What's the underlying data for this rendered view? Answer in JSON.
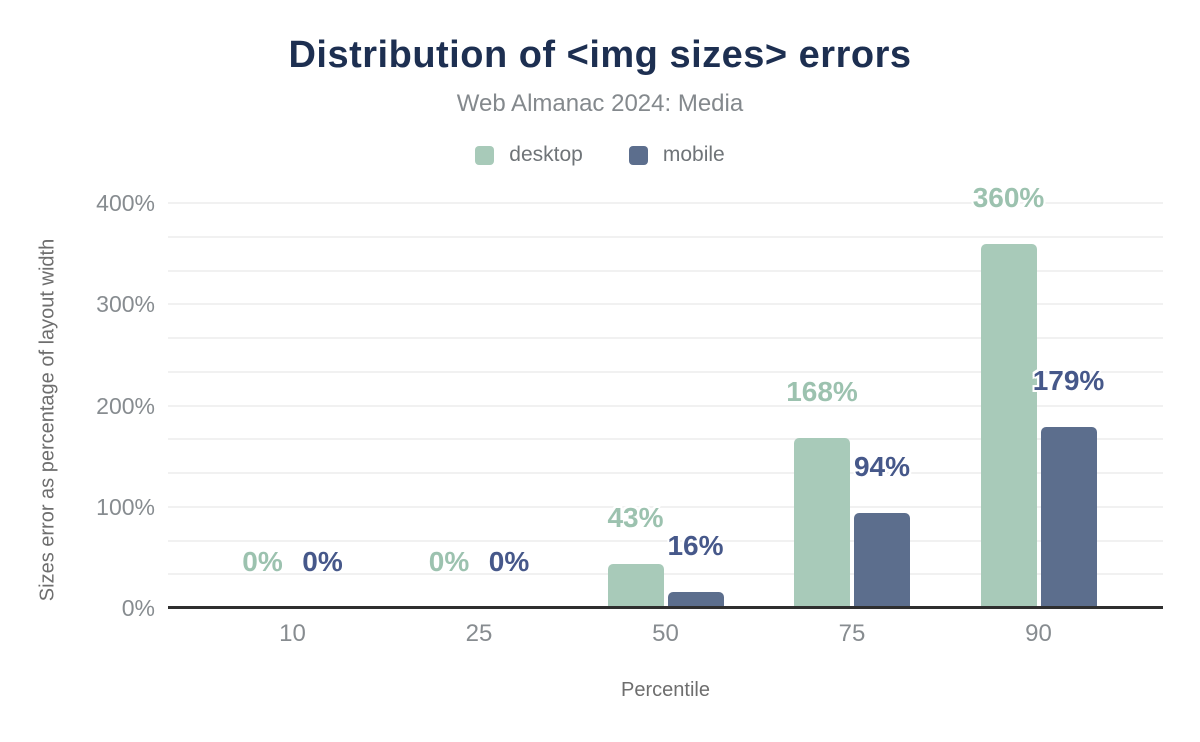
{
  "chart_data": {
    "type": "bar",
    "title": "Distribution of <img sizes> errors",
    "subtitle": "Web Almanac 2024: Media",
    "xlabel": "Percentile",
    "ylabel": "Sizes error as percentage of layout width",
    "categories": [
      "10",
      "25",
      "50",
      "75",
      "90"
    ],
    "series": [
      {
        "name": "desktop",
        "color": "#a8cab9",
        "label_color": "#9cc2af",
        "values": [
          0,
          0,
          43,
          168,
          360
        ],
        "labels": [
          "0%",
          "0%",
          "43%",
          "168%",
          "360%"
        ]
      },
      {
        "name": "mobile",
        "color": "#5c6e8d",
        "label_color": "#46588a",
        "values": [
          0,
          0,
          16,
          94,
          179
        ],
        "labels": [
          "0%",
          "0%",
          "16%",
          "94%",
          "179%"
        ]
      }
    ],
    "ylim": [
      0,
      400
    ],
    "yticks": [
      {
        "value": 0,
        "label": "0%"
      },
      {
        "value": 100,
        "label": "100%"
      },
      {
        "value": 200,
        "label": "200%"
      },
      {
        "value": 300,
        "label": "300%"
      },
      {
        "value": 400,
        "label": "400%"
      }
    ],
    "minor_gridlines_per_major": 3,
    "grid": true,
    "legend_position": "top",
    "colors": {
      "title": "#1d2f51",
      "subtitle": "#84898d",
      "tick_text": "#878c90",
      "axis_line": "#2f2f2f",
      "gridline": "#f1f1f1"
    }
  }
}
